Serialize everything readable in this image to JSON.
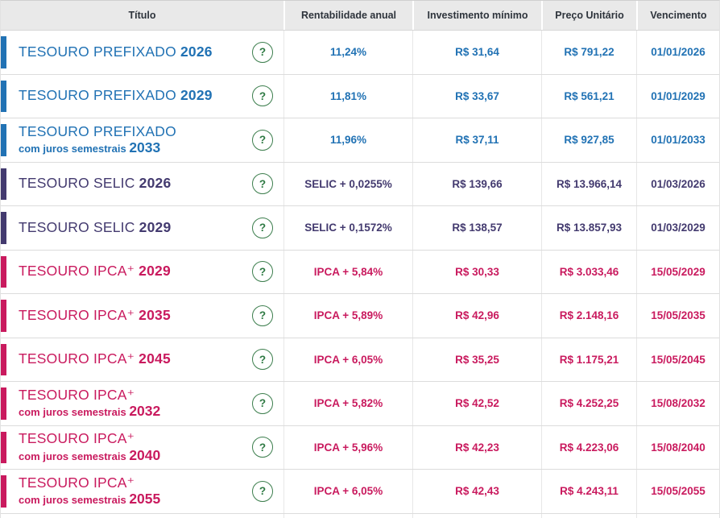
{
  "table": {
    "columns": [
      "Título",
      "Rentabilidade anual",
      "Investimento mínimo",
      "Preço Unitário",
      "Vencimento"
    ],
    "help_icon": "?",
    "colors": {
      "prefixado": "#2172b4",
      "selic": "#433a6f",
      "ipca": "#c91a5e",
      "help_green": "#3c7e4d",
      "header_bg": "#e9e9e9",
      "header_text": "#2e343c"
    },
    "rows": [
      {
        "category": "prefixado",
        "name": "TESOURO PREFIXADO",
        "subtitle": "",
        "year": "2026",
        "rate": "11,24%",
        "min": "R$ 31,64",
        "price": "R$ 791,22",
        "maturity": "01/01/2026"
      },
      {
        "category": "prefixado",
        "name": "TESOURO PREFIXADO",
        "subtitle": "",
        "year": "2029",
        "rate": "11,81%",
        "min": "R$ 33,67",
        "price": "R$ 561,21",
        "maturity": "01/01/2029"
      },
      {
        "category": "prefixado",
        "name": "TESOURO PREFIXADO",
        "subtitle": "com juros semestrais",
        "year": "2033",
        "rate": "11,96%",
        "min": "R$ 37,11",
        "price": "R$ 927,85",
        "maturity": "01/01/2033"
      },
      {
        "category": "selic",
        "name": "TESOURO SELIC",
        "subtitle": "",
        "year": "2026",
        "rate": "SELIC + 0,0255%",
        "min": "R$ 139,66",
        "price": "R$ 13.966,14",
        "maturity": "01/03/2026"
      },
      {
        "category": "selic",
        "name": "TESOURO SELIC",
        "subtitle": "",
        "year": "2029",
        "rate": "SELIC + 0,1572%",
        "min": "R$ 138,57",
        "price": "R$ 13.857,93",
        "maturity": "01/03/2029"
      },
      {
        "category": "ipca",
        "name": "TESOURO IPCA⁺",
        "subtitle": "",
        "year": "2029",
        "rate": "IPCA + 5,84%",
        "min": "R$ 30,33",
        "price": "R$ 3.033,46",
        "maturity": "15/05/2029"
      },
      {
        "category": "ipca",
        "name": "TESOURO IPCA⁺",
        "subtitle": "",
        "year": "2035",
        "rate": "IPCA + 5,89%",
        "min": "R$ 42,96",
        "price": "R$ 2.148,16",
        "maturity": "15/05/2035"
      },
      {
        "category": "ipca",
        "name": "TESOURO IPCA⁺",
        "subtitle": "",
        "year": "2045",
        "rate": "IPCA + 6,05%",
        "min": "R$ 35,25",
        "price": "R$ 1.175,21",
        "maturity": "15/05/2045"
      },
      {
        "category": "ipca",
        "name": "TESOURO IPCA⁺",
        "subtitle": "com juros semestrais",
        "year": "2032",
        "rate": "IPCA + 5,82%",
        "min": "R$ 42,52",
        "price": "R$ 4.252,25",
        "maturity": "15/08/2032"
      },
      {
        "category": "ipca",
        "name": "TESOURO IPCA⁺",
        "subtitle": "com juros semestrais",
        "year": "2040",
        "rate": "IPCA + 5,96%",
        "min": "R$ 42,23",
        "price": "R$ 4.223,06",
        "maturity": "15/08/2040"
      },
      {
        "category": "ipca",
        "name": "TESOURO IPCA⁺",
        "subtitle": "com juros semestrais",
        "year": "2055",
        "rate": "IPCA + 6,05%",
        "min": "R$ 42,43",
        "price": "R$ 4.243,11",
        "maturity": "15/05/2055"
      }
    ]
  }
}
